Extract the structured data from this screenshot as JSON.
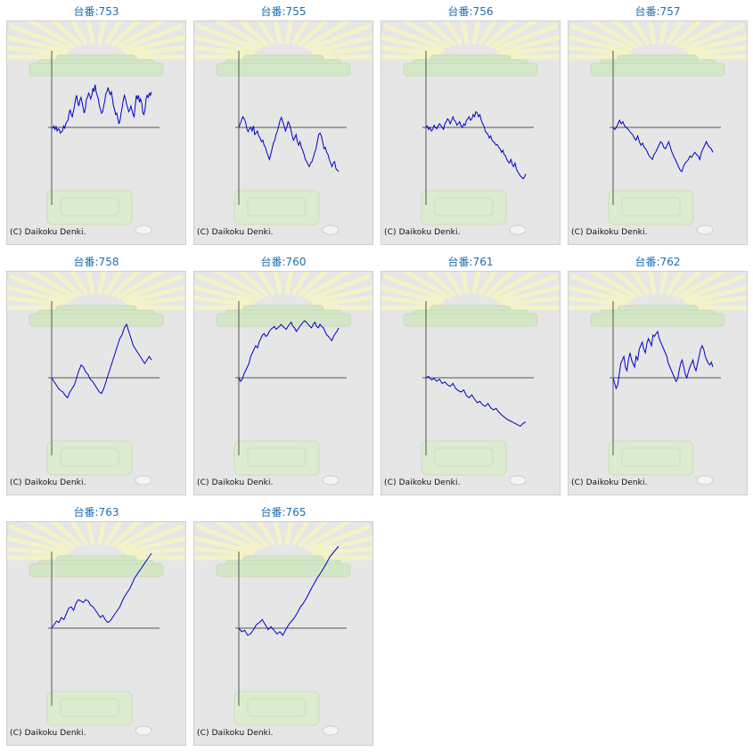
{
  "colors": {
    "line": "#0000cc",
    "axis": "#555555",
    "title": "#1f6fae",
    "panel_bg": "#e6e6e6"
  },
  "copyright": "(C) Daikoku Denki.",
  "chart_data": [
    {
      "type": "line",
      "title": "台番:753",
      "values": [
        0,
        -1,
        2,
        -3,
        1,
        -5,
        -2,
        -3,
        -8,
        -6,
        -5,
        2,
        -1,
        5,
        8,
        10,
        20,
        25,
        18,
        15,
        22,
        30,
        40,
        45,
        35,
        30,
        38,
        42,
        35,
        28,
        20,
        25,
        40,
        42,
        48,
        45,
        40,
        45,
        55,
        50,
        60,
        50,
        45,
        40,
        30,
        25,
        20,
        22,
        30,
        38,
        48,
        50,
        56,
        50,
        46,
        50,
        40,
        30,
        25,
        18,
        20,
        12,
        5,
        10,
        20,
        28,
        38,
        45,
        40,
        33,
        28,
        22,
        25,
        30,
        24,
        18,
        15,
        30,
        45,
        40,
        45,
        35,
        40,
        35,
        20,
        18,
        25,
        40,
        45,
        42,
        48,
        45,
        50
      ]
    },
    {
      "type": "line",
      "title": "台番:755",
      "values": [
        0,
        5,
        10,
        15,
        12,
        8,
        -2,
        -6,
        -2,
        0,
        -5,
        2,
        -10,
        -8,
        -5,
        -12,
        -15,
        -20,
        -18,
        -25,
        -28,
        -35,
        -40,
        -45,
        -38,
        -30,
        -22,
        -18,
        -10,
        -5,
        2,
        10,
        14,
        8,
        2,
        -5,
        0,
        8,
        5,
        -2,
        -10,
        -18,
        -15,
        -10,
        -20,
        -25,
        -20,
        -28,
        -32,
        -38,
        -45,
        -48,
        -52,
        -55,
        -50,
        -48,
        -42,
        -35,
        -30,
        -20,
        -10,
        -8,
        -12,
        -20,
        -30,
        -28,
        -35,
        -38,
        -45,
        -50,
        -55,
        -50,
        -48,
        -58,
        -60,
        -62
      ]
    },
    {
      "type": "line",
      "title": "台番:756",
      "values": [
        0,
        2,
        -3,
        0,
        -5,
        -3,
        3,
        0,
        -2,
        2,
        5,
        3,
        0,
        -3,
        5,
        8,
        12,
        10,
        5,
        10,
        15,
        10,
        8,
        3,
        5,
        8,
        2,
        0,
        5,
        3,
        10,
        12,
        15,
        10,
        12,
        18,
        15,
        22,
        20,
        15,
        18,
        10,
        5,
        2,
        -5,
        -8,
        -10,
        -15,
        -12,
        -18,
        -20,
        -22,
        -25,
        -24,
        -28,
        -30,
        -35,
        -32,
        -38,
        -40,
        -45,
        -48,
        -50,
        -45,
        -52,
        -55,
        -50,
        -58,
        -62,
        -65,
        -68,
        -70,
        -72,
        -70,
        -65
      ]
    },
    {
      "type": "line",
      "title": "台番:757",
      "values": [
        0,
        -3,
        0,
        5,
        10,
        5,
        8,
        2,
        0,
        -2,
        -5,
        -8,
        -10,
        -15,
        -18,
        -12,
        -20,
        -25,
        -22,
        -28,
        -30,
        -35,
        -40,
        -42,
        -45,
        -38,
        -35,
        -30,
        -25,
        -20,
        -22,
        -28,
        -30,
        -25,
        -20,
        -28,
        -35,
        -40,
        -45,
        -50,
        -55,
        -60,
        -62,
        -55,
        -50,
        -48,
        -45,
        -40,
        -42,
        -38,
        -35,
        -38,
        -40,
        -45,
        -35,
        -30,
        -25,
        -20,
        -25,
        -28,
        -30,
        -35
      ]
    },
    {
      "type": "line",
      "title": "台番:758",
      "values": [
        0,
        -5,
        -10,
        -15,
        -18,
        -20,
        -25,
        -28,
        -20,
        -15,
        -10,
        0,
        10,
        18,
        15,
        8,
        5,
        -2,
        -5,
        -10,
        -15,
        -20,
        -22,
        -15,
        -5,
        5,
        15,
        25,
        35,
        45,
        55,
        60,
        70,
        75,
        65,
        55,
        45,
        40,
        35,
        30,
        25,
        20,
        25,
        30,
        25
      ]
    },
    {
      "type": "line",
      "title": "台番:760",
      "values": [
        0,
        -5,
        -2,
        5,
        10,
        15,
        20,
        30,
        35,
        40,
        45,
        42,
        50,
        55,
        60,
        62,
        58,
        60,
        65,
        68,
        70,
        72,
        68,
        70,
        72,
        75,
        72,
        70,
        68,
        72,
        75,
        78,
        72,
        70,
        65,
        68,
        72,
        75,
        78,
        80,
        78,
        75,
        72,
        70,
        75,
        78,
        72,
        70,
        75,
        72,
        70,
        65,
        60,
        58,
        55,
        52,
        58,
        62,
        65,
        70
      ]
    },
    {
      "type": "line",
      "title": "台番:761",
      "values": [
        0,
        2,
        -3,
        -1,
        -5,
        -2,
        -8,
        -6,
        -10,
        -12,
        -8,
        -15,
        -18,
        -20,
        -17,
        -25,
        -28,
        -24,
        -30,
        -35,
        -33,
        -38,
        -40,
        -36,
        -42,
        -45,
        -43,
        -48,
        -52,
        -55,
        -58,
        -60,
        -62,
        -64,
        -66,
        -68,
        -64,
        -62
      ]
    },
    {
      "type": "line",
      "title": "台番:762",
      "values": [
        0,
        -8,
        -15,
        -10,
        5,
        20,
        25,
        30,
        15,
        10,
        25,
        35,
        25,
        20,
        15,
        30,
        25,
        40,
        45,
        50,
        40,
        35,
        48,
        55,
        50,
        45,
        60,
        58,
        62,
        65,
        55,
        50,
        45,
        40,
        35,
        30,
        20,
        15,
        10,
        5,
        0,
        -5,
        -2,
        10,
        20,
        25,
        15,
        5,
        0,
        8,
        15,
        20,
        25,
        15,
        10,
        20,
        30,
        40,
        45,
        40,
        30,
        25,
        20,
        18,
        22,
        15
      ]
    },
    {
      "type": "line",
      "title": "台番:763",
      "values": [
        0,
        5,
        10,
        8,
        15,
        12,
        20,
        28,
        30,
        25,
        35,
        40,
        38,
        36,
        40,
        38,
        32,
        30,
        25,
        20,
        15,
        18,
        12,
        8,
        10,
        15,
        20,
        25,
        30,
        38,
        45,
        50,
        55,
        62,
        70,
        75,
        80,
        85,
        90,
        95,
        100,
        105
      ]
    },
    {
      "type": "line",
      "title": "台番:765",
      "values": [
        0,
        -5,
        -3,
        -10,
        -8,
        -2,
        5,
        8,
        12,
        5,
        -2,
        2,
        -3,
        -8,
        -5,
        -10,
        -2,
        5,
        10,
        15,
        22,
        30,
        35,
        42,
        50,
        58,
        65,
        72,
        78,
        85,
        92,
        100,
        105,
        110,
        115
      ]
    }
  ]
}
